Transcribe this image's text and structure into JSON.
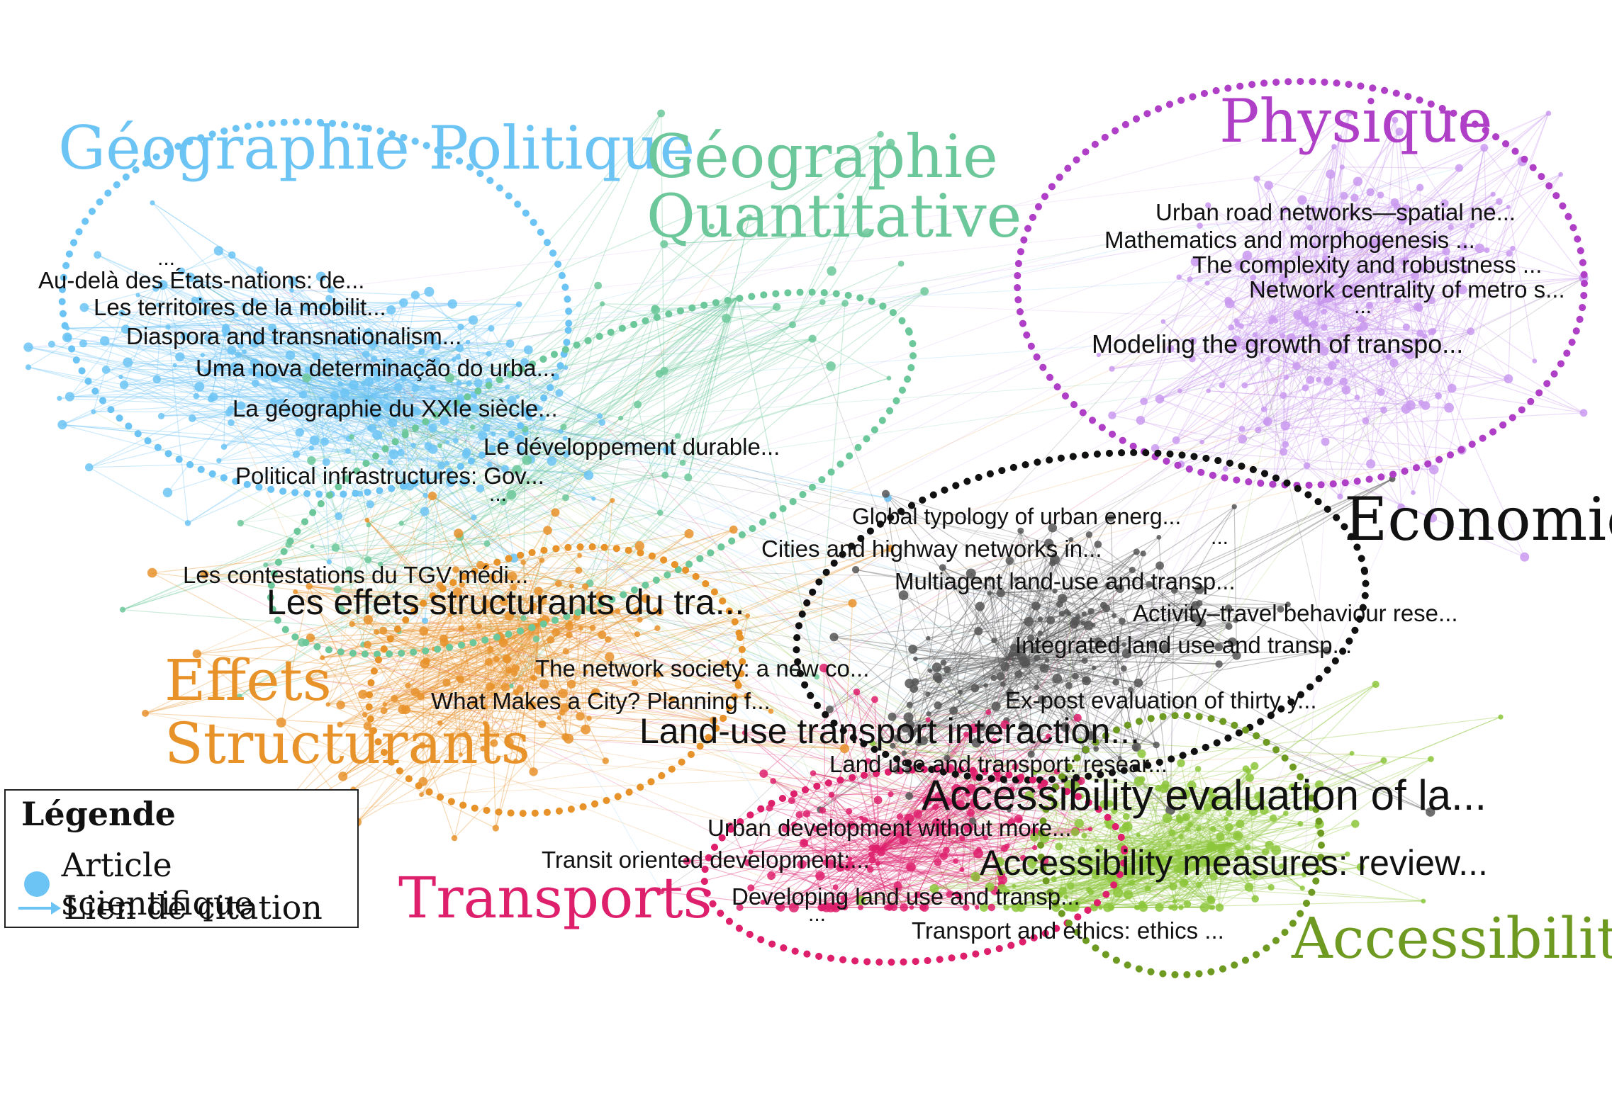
{
  "colors": {
    "politique": "#6cc4f5",
    "quantitative": "#6cc89a",
    "physique": "#b03fc8",
    "physique_nodes": "#c999ee",
    "economie": "#111111",
    "effets": "#e8922a",
    "transports": "#de1f6c",
    "accessibilite": "#6f9a22",
    "accessibilite_nodes": "#8cc63a"
  },
  "clusters": [
    {
      "id": "politique",
      "title_lines": [
        "Géographie Politique"
      ]
    },
    {
      "id": "quantitative",
      "title_lines": [
        "Géographie",
        "Quantitative"
      ]
    },
    {
      "id": "physique",
      "title_lines": [
        "Physique"
      ]
    },
    {
      "id": "economie",
      "title_lines": [
        "Economie"
      ]
    },
    {
      "id": "effets",
      "title_lines": [
        "Effets",
        "Structurants"
      ]
    },
    {
      "id": "transports",
      "title_lines": [
        "Transports"
      ]
    },
    {
      "id": "accessibilite",
      "title_lines": [
        "Accessibilité"
      ]
    }
  ],
  "papers": [
    {
      "cluster": "politique",
      "text": "..."
    },
    {
      "cluster": "politique",
      "text": "Au-delà des États-nations: de..."
    },
    {
      "cluster": "politique",
      "text": "Les territoires de la mobilit..."
    },
    {
      "cluster": "politique",
      "text": "Diaspora and transnationalism..."
    },
    {
      "cluster": "politique",
      "text": "Uma nova determinação do urba..."
    },
    {
      "cluster": "politique",
      "text": "La géographie du XXIe siècle..."
    },
    {
      "cluster": "politique",
      "text": "Le développement durable..."
    },
    {
      "cluster": "politique",
      "text": "Political infrastructures: Gov..."
    },
    {
      "cluster": "politique",
      "text": "..."
    },
    {
      "cluster": "quantitative",
      "text": "Les contestations du TGV médi..."
    },
    {
      "cluster": "effets",
      "text": "Les effets structurants du tra..."
    },
    {
      "cluster": "effets",
      "text": "The network society: a new co..."
    },
    {
      "cluster": "effets",
      "text": "What Makes a City? Planning f..."
    },
    {
      "cluster": "physique",
      "text": "Urban road networks—spatial ne..."
    },
    {
      "cluster": "physique",
      "text": "Mathematics and morphogenesis ..."
    },
    {
      "cluster": "physique",
      "text": "The complexity and robustness ..."
    },
    {
      "cluster": "physique",
      "text": "Network centrality of metro s..."
    },
    {
      "cluster": "physique",
      "text": "..."
    },
    {
      "cluster": "physique",
      "text": "Modeling the growth of transpo..."
    },
    {
      "cluster": "economie",
      "text": "Global typology of urban energ..."
    },
    {
      "cluster": "economie",
      "text": "..."
    },
    {
      "cluster": "economie",
      "text": "Cities and highway networks in..."
    },
    {
      "cluster": "economie",
      "text": "Multiagent land-use and transp..."
    },
    {
      "cluster": "economie",
      "text": "Activity–travel behaviour rese..."
    },
    {
      "cluster": "economie",
      "text": "Integrated land use and transp..."
    },
    {
      "cluster": "economie",
      "text": "Ex-post evaluation of thirty y..."
    },
    {
      "cluster": "economie",
      "text": "Land-use transport interaction..."
    },
    {
      "cluster": "economie",
      "text": "Land use and transport: resear..."
    },
    {
      "cluster": "accessibilite",
      "text": "Accessibility evaluation of la..."
    },
    {
      "cluster": "accessibilite",
      "text": "Accessibility measures: review..."
    },
    {
      "cluster": "transports",
      "text": "Urban development without more..."
    },
    {
      "cluster": "transports",
      "text": "Transit oriented development:..."
    },
    {
      "cluster": "transports",
      "text": "Developing land use and transp..."
    },
    {
      "cluster": "transports",
      "text": "..."
    },
    {
      "cluster": "transports",
      "text": "Transport and ethics: ethics ..."
    }
  ],
  "legend": {
    "title": "Légende",
    "items": [
      {
        "label": "Article scientifique",
        "symbol": "dot",
        "color": "#6cc4f5"
      },
      {
        "label": "Lien de citation",
        "symbol": "arrow",
        "color": "#6cc4f5"
      }
    ]
  }
}
